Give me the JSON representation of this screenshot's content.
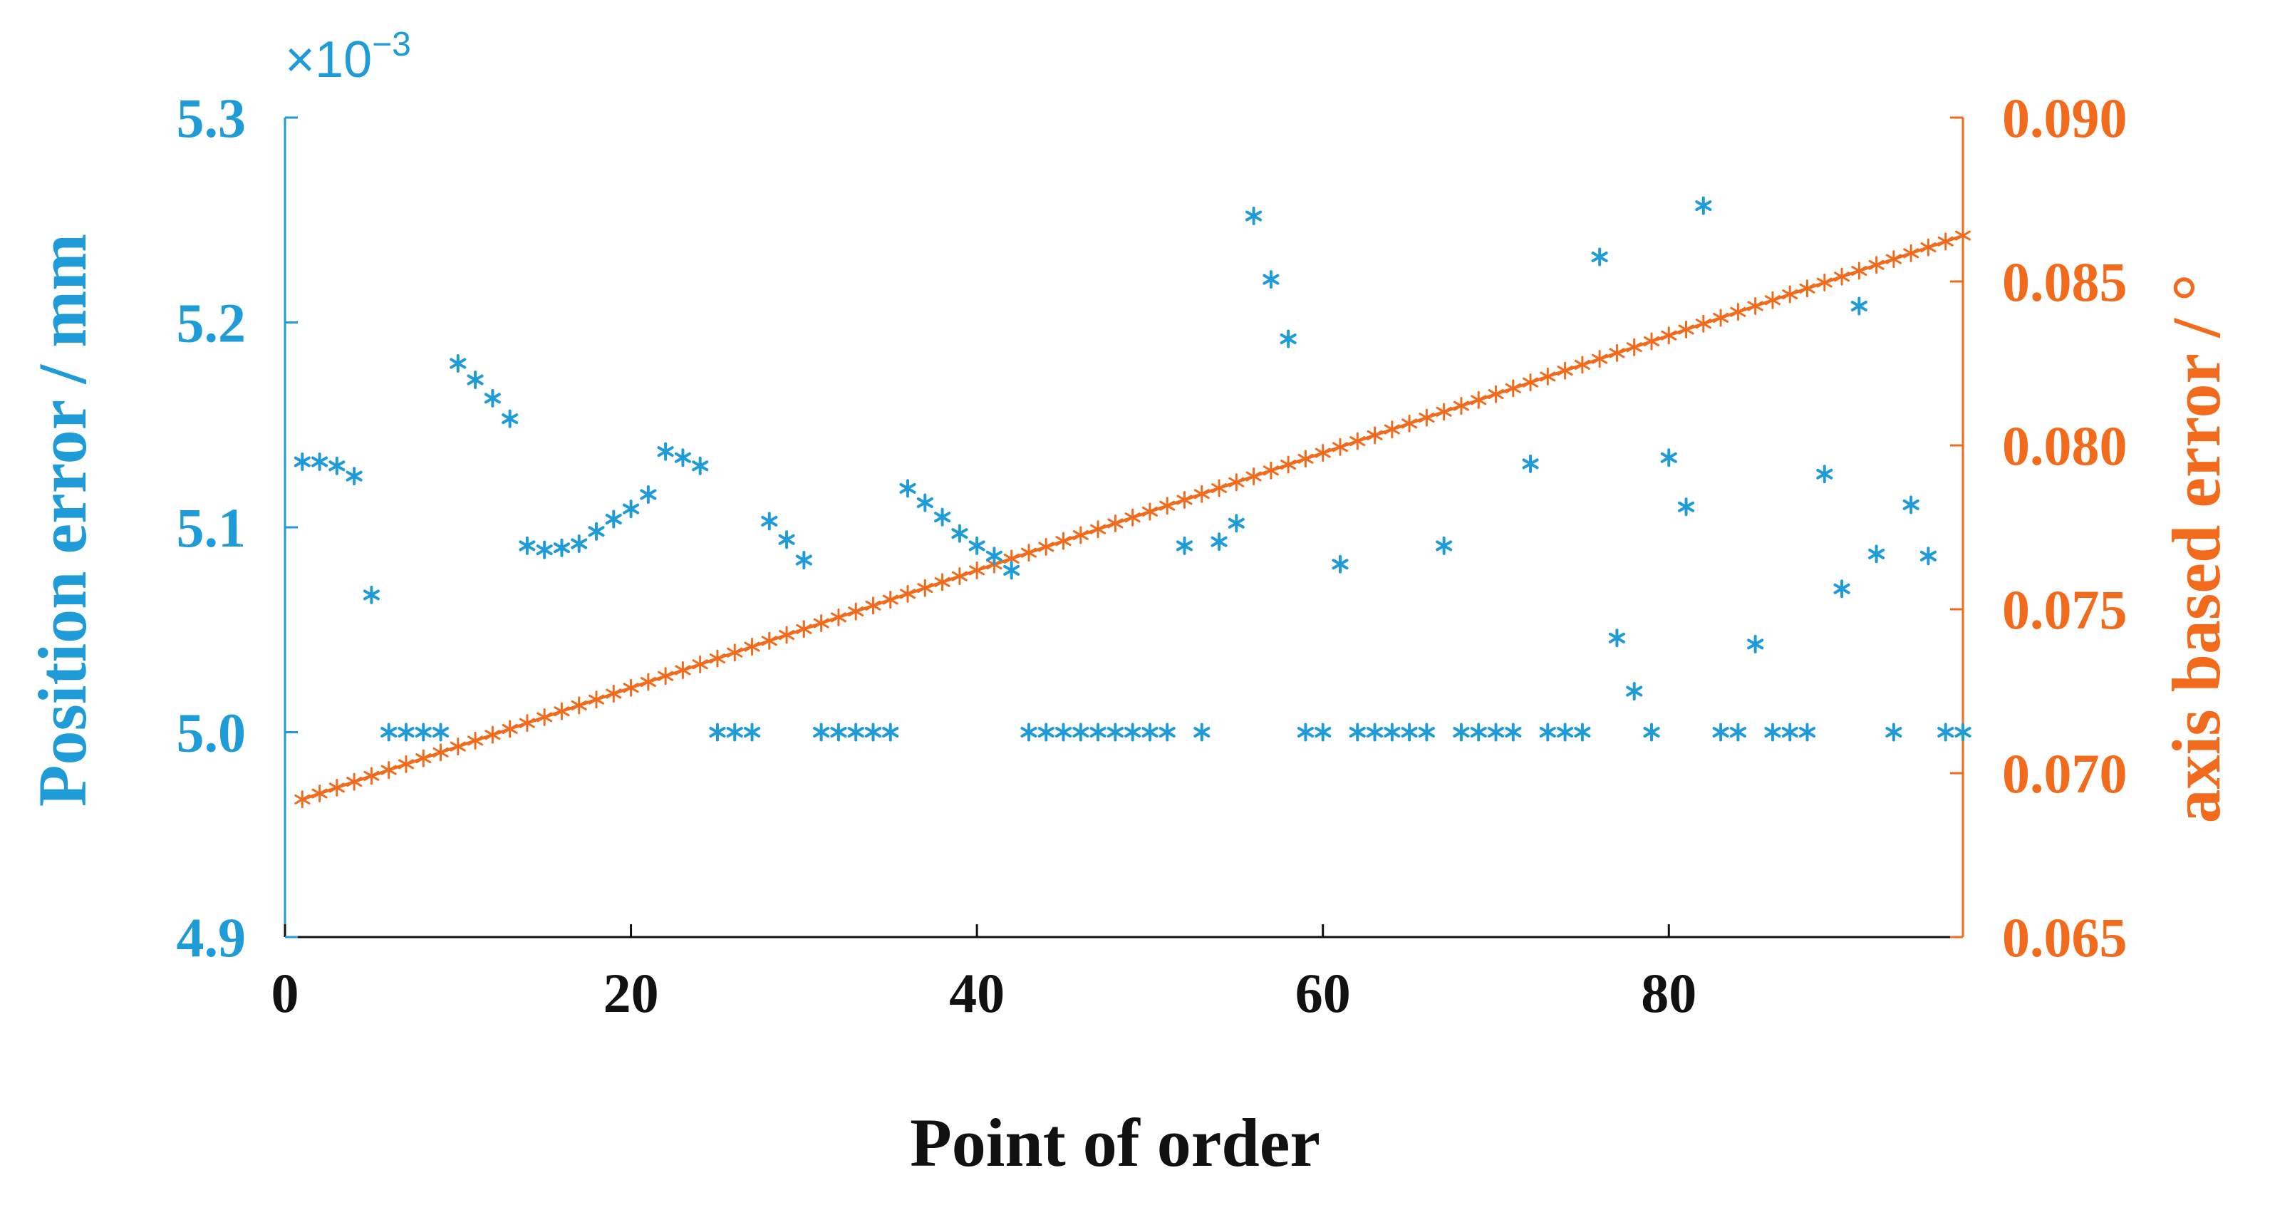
{
  "chart_data": {
    "type": "scatter",
    "xlabel": "Point of order",
    "ylabel_left": "Position error / mm",
    "ylabel_right": "axis based error / °",
    "exponent_label": "×10",
    "exponent_power": "−3",
    "xlim": [
      0,
      97
    ],
    "ylim_left": [
      4.9,
      5.3
    ],
    "ylim_right": [
      0.065,
      0.09
    ],
    "x_ticks": [
      "0",
      "20",
      "40",
      "60",
      "80"
    ],
    "x_tick_values": [
      0,
      20,
      40,
      60,
      80
    ],
    "y_left_ticks": [
      "4.9",
      "5.0",
      "5.1",
      "5.2",
      "5.3"
    ],
    "y_left_tick_values": [
      4.9,
      5.0,
      5.1,
      5.2,
      5.3
    ],
    "y_right_ticks": [
      "0.065",
      "0.070",
      "0.075",
      "0.080",
      "0.085",
      "0.090"
    ],
    "y_right_tick_values": [
      0.065,
      0.07,
      0.075,
      0.08,
      0.085,
      0.09
    ],
    "grid": false,
    "colors": {
      "left": "#1f9bd7",
      "right": "#f26b1d"
    },
    "series": [
      {
        "axis": "left",
        "marker": "asterisk",
        "color": "#1f9bd7",
        "x": [
          1,
          2,
          3,
          4,
          5,
          6,
          7,
          8,
          9,
          10,
          11,
          12,
          13,
          14,
          15,
          16,
          17,
          18,
          19,
          20,
          21,
          22,
          23,
          24,
          25,
          26,
          27,
          28,
          29,
          30,
          31,
          32,
          33,
          34,
          35,
          36,
          37,
          38,
          39,
          40,
          41,
          42,
          43,
          44,
          45,
          46,
          47,
          48,
          49,
          50,
          51,
          52,
          53,
          54,
          55,
          56,
          57,
          58,
          59,
          60,
          61,
          62,
          63,
          64,
          65,
          66,
          67,
          68,
          69,
          70,
          71,
          72,
          73,
          74,
          75,
          76,
          77,
          78,
          79,
          80,
          81,
          82,
          83,
          84,
          85,
          86,
          87,
          88,
          89,
          90,
          91,
          92,
          93,
          94,
          95,
          96,
          97
        ],
        "y": [
          5.132,
          5.132,
          5.13,
          5.125,
          5.067,
          5.0,
          5.0,
          5.0,
          5.0,
          5.18,
          5.172,
          5.163,
          5.153,
          5.091,
          5.089,
          5.09,
          5.092,
          5.098,
          5.104,
          5.109,
          5.116,
          5.137,
          5.134,
          5.13,
          5.0,
          5.0,
          5.0,
          5.103,
          5.094,
          5.084,
          5.0,
          5.0,
          5.0,
          5.0,
          5.0,
          5.119,
          5.112,
          5.105,
          5.097,
          5.091,
          5.086,
          5.079,
          5.0,
          5.0,
          5.0,
          5.0,
          5.0,
          5.0,
          5.0,
          5.0,
          5.0,
          5.091,
          5.0,
          5.093,
          5.102,
          5.252,
          5.221,
          5.192,
          5.0,
          5.0,
          5.082,
          5.0,
          5.0,
          5.0,
          5.0,
          5.0,
          5.091,
          5.0,
          5.0,
          5.0,
          5.0,
          5.131,
          5.0,
          5.0,
          5.0,
          5.232,
          5.046,
          5.02,
          5.0,
          5.134,
          5.11,
          5.257,
          5.0,
          5.0,
          5.043,
          5.0,
          5.0,
          5.0,
          5.126,
          5.07,
          5.208,
          5.087,
          5.0,
          5.111,
          5.086,
          5.0,
          5.0
        ]
      },
      {
        "axis": "right",
        "marker": "asterisk-line",
        "color": "#f26b1d",
        "x_start": 1,
        "x_end": 97,
        "y_start": 0.0692,
        "y_end": 0.0864
      }
    ]
  }
}
